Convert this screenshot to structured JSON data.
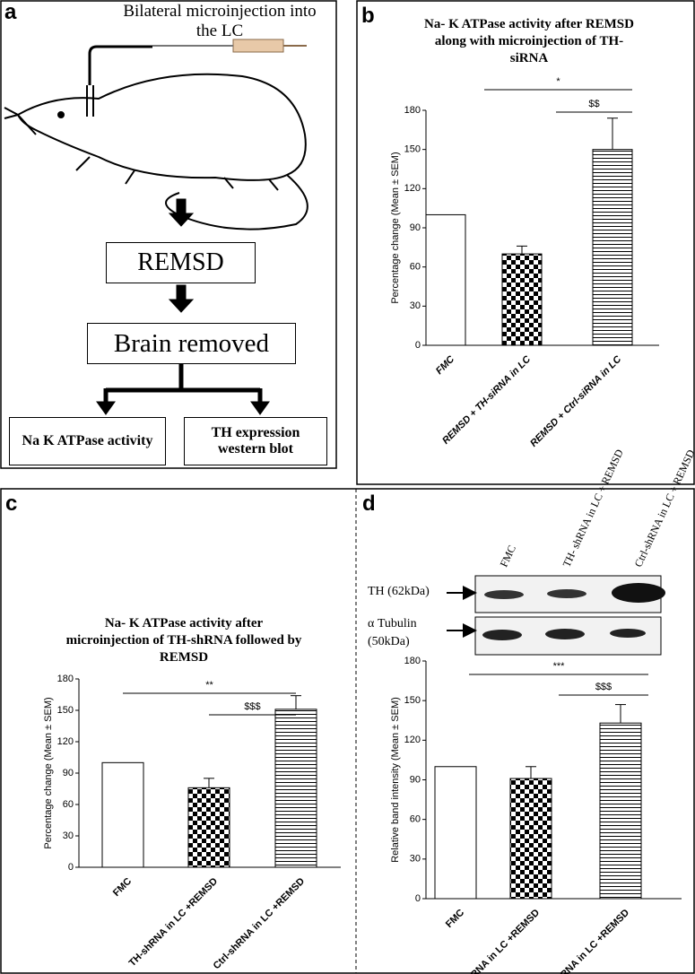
{
  "panel_labels": [
    "a",
    "b",
    "c",
    "d"
  ],
  "diagram": {
    "title": "Bilateral microinjection into the LC",
    "steps": [
      "REMSD",
      "Brain removed"
    ],
    "outcomes": [
      "Na K ATPase activity",
      "TH expression western blot"
    ]
  },
  "blot": {
    "lanes": [
      "FMC",
      "TH- shRNA in LC + REMSD",
      "Ctrl-shRNA in LC + REMSD"
    ],
    "rows": [
      "TH (62kDa)",
      "α Tubulin (50kDa)"
    ]
  },
  "chart_data": [
    {
      "type": "bar",
      "title": "Na- K ATPase activity after REMSD along with microinjection of TH-siRNA",
      "ylabel": "Percentage change (Mean ± SEM)",
      "categories": [
        "FMC",
        "REMSD + TH-siRNA in LC",
        "REMSD + Ctrl-siRNA in LC"
      ],
      "values": [
        100,
        70,
        150
      ],
      "errors": [
        null,
        6,
        24
      ],
      "patterns": [
        "plain",
        "checker",
        "hstripe"
      ],
      "annotations": [
        "*",
        "$$"
      ],
      "ylim": [
        0,
        180
      ],
      "yticks": [
        0,
        30,
        60,
        90,
        120,
        150,
        180
      ]
    },
    {
      "type": "bar",
      "title": "Na- K ATPase activity after microinjection of TH-shRNA followed by REMSD",
      "ylabel": "Percentage change (Mean ± SEM)",
      "categories": [
        "FMC",
        "TH-shRNA in LC +REMSD",
        "Ctrl-shRNA in LC +REMSD"
      ],
      "values": [
        100,
        76,
        151
      ],
      "errors": [
        null,
        9,
        13
      ],
      "patterns": [
        "plain",
        "checker",
        "hstripe"
      ],
      "annotations": [
        "**",
        "$$$"
      ],
      "ylim": [
        0,
        180
      ],
      "yticks": [
        0,
        30,
        60,
        90,
        120,
        150,
        180
      ]
    },
    {
      "type": "bar",
      "ylabel": "Relative band intensity (Mean ± SEM)",
      "categories": [
        "FMC",
        "TH-shRNA in LC +REMSD",
        "Ctrl-shRNA in LC +REMSD"
      ],
      "values": [
        100,
        91,
        133
      ],
      "errors": [
        null,
        9,
        14
      ],
      "patterns": [
        "plain",
        "checker",
        "hstripe"
      ],
      "annotations": [
        "***",
        "$$$"
      ],
      "ylim": [
        0,
        180
      ],
      "yticks": [
        0,
        30,
        60,
        90,
        120,
        150,
        180
      ]
    }
  ]
}
